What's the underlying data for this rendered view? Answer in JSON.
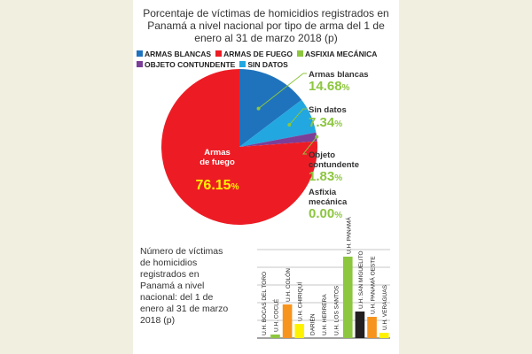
{
  "chart_data": [
    {
      "type": "pie",
      "title": "Porcentaje de víctimas de homicidios registrados en Panamá a nivel nacional por tipo de arma del 1 de enero al 31 de marzo 2018 (p)",
      "legend": [
        "ARMAS BLANCAS",
        "ARMAS DE FUEGO",
        "ASFIXIA MECÁNICA",
        "OBJETO CONTUNDENTE",
        "SIN DATOS"
      ],
      "legend_placement": "top",
      "slices": [
        {
          "name": "Armas blancas",
          "label_lines": [
            "Armas blancas"
          ],
          "value": 14.68,
          "value_text": "14.68",
          "color": "#1f73bd",
          "label_color": "#333333",
          "value_color": "#8dc63f"
        },
        {
          "name": "Sin datos",
          "label_lines": [
            "Sin datos"
          ],
          "value": 7.34,
          "value_text": "7.34",
          "color": "#22a7e0",
          "label_color": "#333333",
          "value_color": "#8dc63f"
        },
        {
          "name": "Objeto contundente",
          "label_lines": [
            "Objeto",
            "contundente"
          ],
          "value": 1.83,
          "value_text": "1.83",
          "color": "#7b3f98",
          "label_color": "#333333",
          "value_color": "#8dc63f"
        },
        {
          "name": "Asfixia mecánica",
          "label_lines": [
            "Asfixia",
            "mecánica"
          ],
          "value": 0.0,
          "value_text": "0.00",
          "color": "#8dc63f",
          "label_color": "#333333",
          "value_color": "#8dc63f"
        },
        {
          "name": "Armas de fuego",
          "label_lines": [
            "Armas",
            "de fuego"
          ],
          "value": 76.15,
          "value_text": "76.15",
          "color": "#ed1c24",
          "label_color": "#ffffff",
          "value_color": "#fff200"
        }
      ],
      "percent_sign": "%"
    },
    {
      "type": "bar",
      "title": "Número de víctimas de homicidios registrados en Panamá a nivel nacional: del 1 de enero al 31 de marzo 2018 (p)",
      "categories": [
        "U.H. BOCAS DEL TORO",
        "U.H. COCLÉ",
        "U.H. COLÓN",
        "U.H. CHIRIQUÍ",
        "DARIÉN",
        "U.H. HERRERA",
        "U.H. LOS SANTOS",
        "U.H. PANAMÁ",
        "U.H. SAN MIGUELITO",
        "U.H. PANAMÁ OESTE",
        "U.H. VERAGUAS"
      ],
      "values": [
        0,
        2,
        19,
        8,
        0,
        0,
        0,
        46,
        15,
        12,
        3
      ],
      "colors": [
        "#8dc63f",
        "#8dc63f",
        "#f7941d",
        "#fff200",
        "#8dc63f",
        "#8dc63f",
        "#8dc63f",
        "#8dc63f",
        "#231f20",
        "#f7941d",
        "#fff200"
      ],
      "ylim": [
        0,
        50
      ],
      "grid": true
    }
  ]
}
